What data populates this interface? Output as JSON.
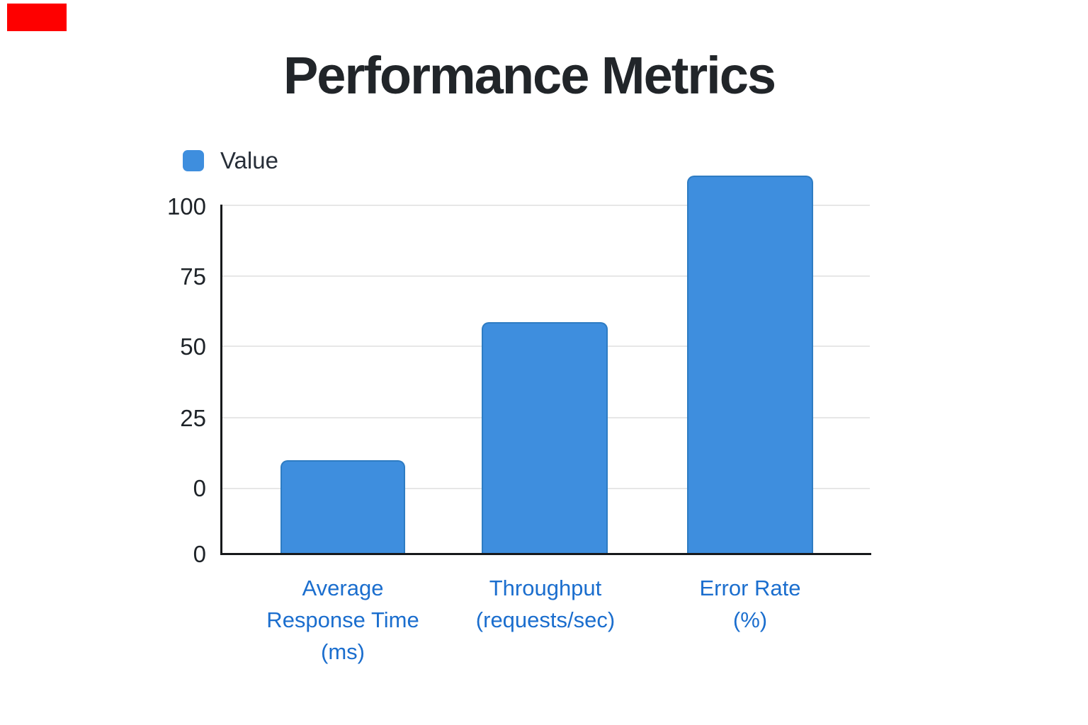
{
  "page": {
    "background": "#FFFFFF"
  },
  "overlay_marker": {
    "name": "red-marker",
    "color": "#FE0000"
  },
  "chart_data": {
    "type": "bar",
    "title": "Performance Metrics",
    "legend": {
      "position": "top-left",
      "items": [
        {
          "label": "Value",
          "swatch_color": "#3E8EDE"
        }
      ]
    },
    "categories": [
      "Average Response Time (ms)",
      "Throughput (requests/sec)",
      "Error Rate (%)"
    ],
    "categories_display": [
      "Average\nResponse Time\n(ms)",
      "Throughput\n(requests/sec)",
      "Error Rate\n(%)"
    ],
    "series": [
      {
        "name": "Value",
        "values": [
          10,
          59,
          111
        ]
      }
    ],
    "y_axis": {
      "tick_labels": [
        "100",
        "75",
        "50",
        "25",
        "0",
        "0"
      ],
      "tick_spacing": 25,
      "grid": true,
      "note": "Six evenly spaced ticks; the bottom two ticks are both labeled 0. Values are read against the upper 0 gridline; the tallest bar exceeds the 100 tick (~111)."
    },
    "x_axis": {
      "label_color": "#1B6ECE"
    },
    "colors": {
      "bar_fill": "#3E8EDE",
      "bar_border": "#2E7CC3",
      "gridline": "#E7E7E7",
      "axis_line": "#17191B",
      "title_text": "#212529",
      "tick_text": "#1E2328",
      "legend_text": "#272E38",
      "background": "#FFFFFF"
    }
  }
}
